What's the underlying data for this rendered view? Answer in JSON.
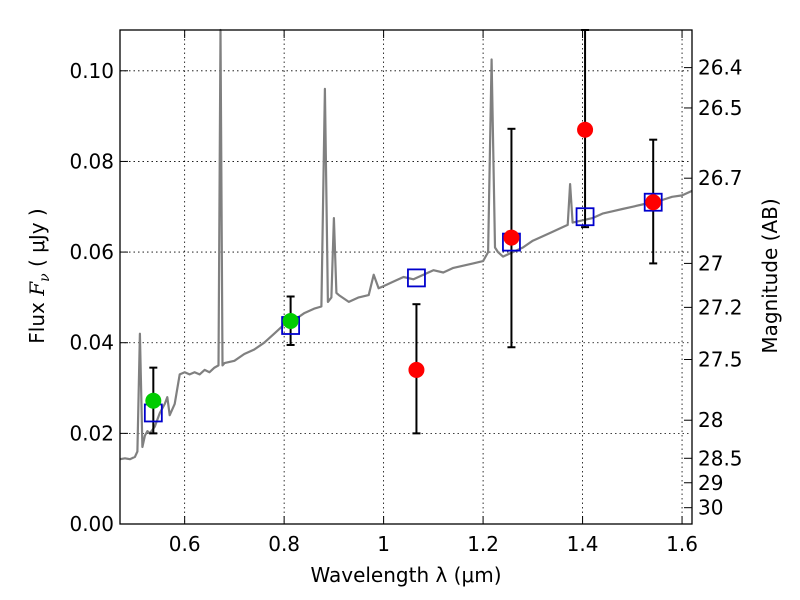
{
  "chart_data": {
    "type": "scatter",
    "xlabel": "Wavelength  λ (μm)",
    "ylabel_prefix": "Flux  ",
    "ylabel_symbol": "F",
    "ylabel_subscript": "ν",
    "ylabel_suffix": "  ( μJy )",
    "y2label": "Magnitude (AB)",
    "xlim": [
      0.47,
      1.62
    ],
    "ylim": [
      0.0,
      0.109
    ],
    "grid": true,
    "x_ticks": [
      {
        "value": 0.6,
        "label": "0.6"
      },
      {
        "value": 0.8,
        "label": "0.8"
      },
      {
        "value": 1.0,
        "label": "1"
      },
      {
        "value": 1.2,
        "label": "1.2"
      },
      {
        "value": 1.4,
        "label": "1.4"
      },
      {
        "value": 1.6,
        "label": "1.6"
      }
    ],
    "y_ticks": [
      {
        "value": 0.0,
        "label": "0.00"
      },
      {
        "value": 0.02,
        "label": "0.02"
      },
      {
        "value": 0.04,
        "label": "0.04"
      },
      {
        "value": 0.06,
        "label": "0.06"
      },
      {
        "value": 0.08,
        "label": "0.08"
      },
      {
        "value": 0.1,
        "label": "0.10"
      }
    ],
    "y2_ticks": [
      {
        "flux": 0.1007,
        "label": "26.4"
      },
      {
        "flux": 0.0918,
        "label": "26.5"
      },
      {
        "flux": 0.0763,
        "label": "26.7"
      },
      {
        "flux": 0.0575,
        "label": "27"
      },
      {
        "flux": 0.0478,
        "label": "27.2"
      },
      {
        "flux": 0.0363,
        "label": "27.5"
      },
      {
        "flux": 0.0229,
        "label": "28"
      },
      {
        "flux": 0.0145,
        "label": "28.5"
      },
      {
        "flux": 0.0091,
        "label": "29"
      },
      {
        "flux": 0.0036,
        "label": "30"
      }
    ],
    "series": [
      {
        "name": "model-spectrum",
        "kind": "line",
        "color": "#808080",
        "points": [
          [
            0.47,
            0.0143
          ],
          [
            0.48,
            0.0145
          ],
          [
            0.49,
            0.0143
          ],
          [
            0.5,
            0.0148
          ],
          [
            0.505,
            0.016
          ],
          [
            0.51,
            0.042
          ],
          [
            0.515,
            0.017
          ],
          [
            0.52,
            0.0195
          ],
          [
            0.525,
            0.0205
          ],
          [
            0.53,
            0.02
          ],
          [
            0.54,
            0.0215
          ],
          [
            0.55,
            0.0245
          ],
          [
            0.56,
            0.0265
          ],
          [
            0.565,
            0.028
          ],
          [
            0.57,
            0.024
          ],
          [
            0.58,
            0.0265
          ],
          [
            0.59,
            0.033
          ],
          [
            0.6,
            0.0335
          ],
          [
            0.61,
            0.033
          ],
          [
            0.62,
            0.0335
          ],
          [
            0.63,
            0.033
          ],
          [
            0.64,
            0.034
          ],
          [
            0.65,
            0.0335
          ],
          [
            0.66,
            0.0345
          ],
          [
            0.668,
            0.035
          ],
          [
            0.672,
            0.109
          ],
          [
            0.676,
            0.035
          ],
          [
            0.68,
            0.0355
          ],
          [
            0.7,
            0.036
          ],
          [
            0.72,
            0.0375
          ],
          [
            0.74,
            0.0385
          ],
          [
            0.76,
            0.04
          ],
          [
            0.78,
            0.042
          ],
          [
            0.8,
            0.044
          ],
          [
            0.82,
            0.045
          ],
          [
            0.84,
            0.0465
          ],
          [
            0.86,
            0.0475
          ],
          [
            0.875,
            0.048
          ],
          [
            0.882,
            0.096
          ],
          [
            0.888,
            0.049
          ],
          [
            0.895,
            0.05
          ],
          [
            0.9,
            0.0675
          ],
          [
            0.905,
            0.051
          ],
          [
            0.91,
            0.0505
          ],
          [
            0.93,
            0.049
          ],
          [
            0.95,
            0.05
          ],
          [
            0.97,
            0.0505
          ],
          [
            0.98,
            0.055
          ],
          [
            0.99,
            0.052
          ],
          [
            1.0,
            0.0525
          ],
          [
            1.02,
            0.0535
          ],
          [
            1.04,
            0.0545
          ],
          [
            1.06,
            0.054
          ],
          [
            1.08,
            0.055
          ],
          [
            1.1,
            0.056
          ],
          [
            1.12,
            0.0555
          ],
          [
            1.14,
            0.0565
          ],
          [
            1.16,
            0.057
          ],
          [
            1.18,
            0.0575
          ],
          [
            1.2,
            0.058
          ],
          [
            1.21,
            0.06
          ],
          [
            1.217,
            0.1025
          ],
          [
            1.224,
            0.061
          ],
          [
            1.23,
            0.06
          ],
          [
            1.24,
            0.059
          ],
          [
            1.26,
            0.06
          ],
          [
            1.28,
            0.061
          ],
          [
            1.3,
            0.0625
          ],
          [
            1.32,
            0.0635
          ],
          [
            1.34,
            0.0645
          ],
          [
            1.36,
            0.0655
          ],
          [
            1.37,
            0.066
          ],
          [
            1.375,
            0.075
          ],
          [
            1.38,
            0.0665
          ],
          [
            1.4,
            0.067
          ],
          [
            1.42,
            0.0675
          ],
          [
            1.44,
            0.0685
          ],
          [
            1.46,
            0.069
          ],
          [
            1.48,
            0.0695
          ],
          [
            1.5,
            0.07
          ],
          [
            1.52,
            0.0705
          ],
          [
            1.54,
            0.071
          ],
          [
            1.56,
            0.0715
          ],
          [
            1.58,
            0.0722
          ],
          [
            1.6,
            0.0725
          ],
          [
            1.62,
            0.0735
          ]
        ]
      },
      {
        "name": "model-photometry",
        "kind": "square",
        "color": "#0000cc",
        "points": [
          [
            0.537,
            0.0245
          ],
          [
            0.813,
            0.0438
          ],
          [
            1.066,
            0.0543
          ],
          [
            1.257,
            0.0622
          ],
          [
            1.405,
            0.0678
          ],
          [
            1.542,
            0.071
          ]
        ]
      },
      {
        "name": "observed-green",
        "kind": "circle",
        "color": "#00cc00",
        "points": [
          [
            0.537,
            0.0272
          ],
          [
            0.813,
            0.0448
          ]
        ],
        "errors": [
          [
            0.02,
            0.0345
          ],
          [
            0.0395,
            0.0502
          ]
        ]
      },
      {
        "name": "observed-red",
        "kind": "circle",
        "color": "#ff0000",
        "points": [
          [
            1.066,
            0.034
          ],
          [
            1.257,
            0.0632
          ],
          [
            1.405,
            0.087
          ],
          [
            1.542,
            0.071
          ]
        ],
        "errors": [
          [
            0.02,
            0.0485
          ],
          [
            0.039,
            0.0872
          ],
          [
            0.0655,
            0.109
          ],
          [
            0.0575,
            0.0848
          ]
        ]
      }
    ]
  }
}
